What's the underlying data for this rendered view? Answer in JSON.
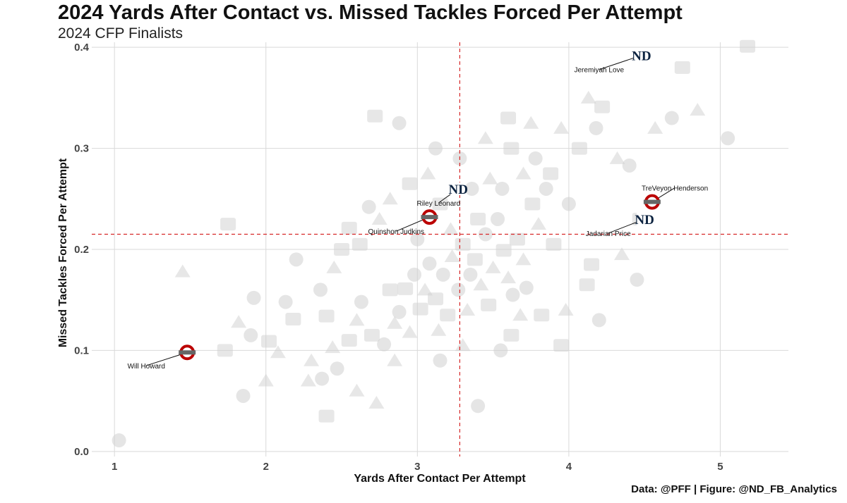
{
  "header": {
    "title": "2024 Yards After Contact vs. Missed Tackles Forced Per Attempt",
    "subtitle": "2024 CFP Finalists"
  },
  "footer": {
    "caption": "Data: @PFF | Figure: @ND_FB_Analytics"
  },
  "colors": {
    "notre_dame": "#0c2340",
    "ohio_state": "#bb0000",
    "ohio_state_gray": "#666666",
    "reference_line": "#d62728",
    "background_logo": "#cfcfcf",
    "grid": "#d9d9d9"
  },
  "chart_data": {
    "type": "scatter",
    "xlabel": "Yards After Contact Per Attempt",
    "ylabel": "Missed Tackles Forced Per Attempt",
    "xlim": [
      0.85,
      5.45
    ],
    "ylim": [
      -0.005,
      0.405
    ],
    "xticks": [
      1,
      2,
      3,
      4,
      5
    ],
    "xtick_labels": [
      "1",
      "2",
      "3",
      "4",
      "5"
    ],
    "yticks": [
      0.0,
      0.1,
      0.2,
      0.3,
      0.4
    ],
    "ytick_labels": [
      "0.0",
      "0.1",
      "0.2",
      "0.3",
      "0.4"
    ],
    "grid": true,
    "reference_lines": {
      "x": 3.28,
      "y": 0.215
    },
    "highlighted": [
      {
        "label": "Jeremiyah Love",
        "team": "Notre Dame",
        "x": 4.48,
        "y": 0.392,
        "label_dx": -0.28,
        "label_dy": -0.014
      },
      {
        "label": "TreVeyon Henderson",
        "team": "Ohio State",
        "x": 4.55,
        "y": 0.247,
        "label_dx": 0.15,
        "label_dy": 0.014
      },
      {
        "label": "Jadarian Price",
        "team": "Notre Dame",
        "x": 4.5,
        "y": 0.23,
        "label_dx": -0.24,
        "label_dy": -0.014
      },
      {
        "label": "Riley Leonard",
        "team": "Notre Dame",
        "x": 3.27,
        "y": 0.26,
        "label_dx": -0.13,
        "label_dy": -0.014
      },
      {
        "label": "Quinshon Judkins",
        "team": "Ohio State",
        "x": 3.08,
        "y": 0.232,
        "label_dx": -0.22,
        "label_dy": -0.014
      },
      {
        "label": "Will Howard",
        "team": "Ohio State",
        "x": 1.48,
        "y": 0.098,
        "label_dx": -0.27,
        "label_dy": -0.013
      }
    ],
    "background_teams": [
      [
        1.03,
        0.011
      ],
      [
        1.73,
        0.1
      ],
      [
        1.82,
        0.128
      ],
      [
        1.92,
        0.152
      ],
      [
        2.02,
        0.109
      ],
      [
        2.08,
        0.098
      ],
      [
        2.13,
        0.148
      ],
      [
        2.18,
        0.131
      ],
      [
        2.28,
        0.07
      ],
      [
        2.37,
        0.072
      ],
      [
        2.4,
        0.134
      ],
      [
        2.44,
        0.103
      ],
      [
        2.47,
        0.082
      ],
      [
        2.5,
        0.2
      ],
      [
        2.6,
        0.13
      ],
      [
        2.63,
        0.148
      ],
      [
        2.7,
        0.115
      ],
      [
        2.73,
        0.048
      ],
      [
        2.78,
        0.106
      ],
      [
        2.82,
        0.16
      ],
      [
        2.85,
        0.127
      ],
      [
        2.88,
        0.138
      ],
      [
        2.92,
        0.161
      ],
      [
        2.95,
        0.118
      ],
      [
        2.98,
        0.175
      ],
      [
        3.02,
        0.141
      ],
      [
        3.05,
        0.16
      ],
      [
        3.08,
        0.186
      ],
      [
        3.12,
        0.151
      ],
      [
        3.14,
        0.12
      ],
      [
        3.17,
        0.175
      ],
      [
        3.2,
        0.135
      ],
      [
        3.23,
        0.193
      ],
      [
        3.27,
        0.16
      ],
      [
        3.3,
        0.205
      ],
      [
        3.33,
        0.14
      ],
      [
        3.35,
        0.175
      ],
      [
        3.38,
        0.19
      ],
      [
        3.42,
        0.165
      ],
      [
        3.45,
        0.215
      ],
      [
        3.47,
        0.145
      ],
      [
        3.5,
        0.182
      ],
      [
        3.53,
        0.23
      ],
      [
        3.57,
        0.199
      ],
      [
        3.6,
        0.172
      ],
      [
        3.63,
        0.155
      ],
      [
        3.66,
        0.21
      ],
      [
        3.7,
        0.19
      ],
      [
        3.72,
        0.162
      ],
      [
        3.76,
        0.245
      ],
      [
        3.8,
        0.225
      ],
      [
        3.85,
        0.26
      ],
      [
        3.9,
        0.205
      ],
      [
        3.95,
        0.32
      ],
      [
        4.0,
        0.245
      ],
      [
        4.07,
        0.3
      ],
      [
        4.13,
        0.35
      ],
      [
        4.18,
        0.32
      ],
      [
        4.22,
        0.341
      ],
      [
        4.32,
        0.29
      ],
      [
        4.4,
        0.283
      ],
      [
        4.47,
        0.23
      ],
      [
        4.57,
        0.32
      ],
      [
        4.68,
        0.33
      ],
      [
        4.75,
        0.38
      ],
      [
        4.85,
        0.338
      ],
      [
        5.05,
        0.31
      ],
      [
        5.18,
        0.401
      ],
      [
        3.07,
        0.275
      ],
      [
        3.12,
        0.3
      ],
      [
        2.95,
        0.265
      ],
      [
        2.82,
        0.25
      ],
      [
        2.68,
        0.242
      ],
      [
        2.55,
        0.221
      ],
      [
        2.45,
        0.182
      ],
      [
        2.36,
        0.16
      ],
      [
        2.62,
        0.205
      ],
      [
        2.75,
        0.23
      ],
      [
        3.0,
        0.21
      ],
      [
        3.15,
        0.245
      ],
      [
        3.22,
        0.22
      ],
      [
        3.36,
        0.26
      ],
      [
        3.4,
        0.23
      ],
      [
        3.48,
        0.27
      ],
      [
        3.56,
        0.26
      ],
      [
        3.62,
        0.3
      ],
      [
        3.7,
        0.275
      ],
      [
        3.78,
        0.29
      ],
      [
        3.88,
        0.275
      ],
      [
        3.45,
        0.31
      ],
      [
        3.28,
        0.29
      ],
      [
        3.6,
        0.33
      ],
      [
        3.75,
        0.325
      ],
      [
        2.88,
        0.325
      ],
      [
        2.72,
        0.332
      ],
      [
        3.3,
        0.105
      ],
      [
        3.55,
        0.1
      ],
      [
        3.62,
        0.115
      ],
      [
        2.3,
        0.09
      ],
      [
        1.9,
        0.115
      ],
      [
        2.55,
        0.11
      ],
      [
        2.85,
        0.09
      ],
      [
        3.15,
        0.09
      ],
      [
        4.15,
        0.185
      ],
      [
        4.35,
        0.195
      ],
      [
        4.45,
        0.17
      ],
      [
        4.12,
        0.165
      ],
      [
        3.98,
        0.14
      ],
      [
        4.2,
        0.13
      ],
      [
        3.82,
        0.135
      ],
      [
        3.68,
        0.135
      ],
      [
        3.4,
        0.045
      ],
      [
        3.95,
        0.105
      ],
      [
        2.0,
        0.07
      ],
      [
        1.85,
        0.055
      ],
      [
        2.4,
        0.035
      ],
      [
        2.6,
        0.06
      ],
      [
        2.2,
        0.19
      ],
      [
        1.75,
        0.225
      ],
      [
        1.45,
        0.178
      ]
    ]
  }
}
